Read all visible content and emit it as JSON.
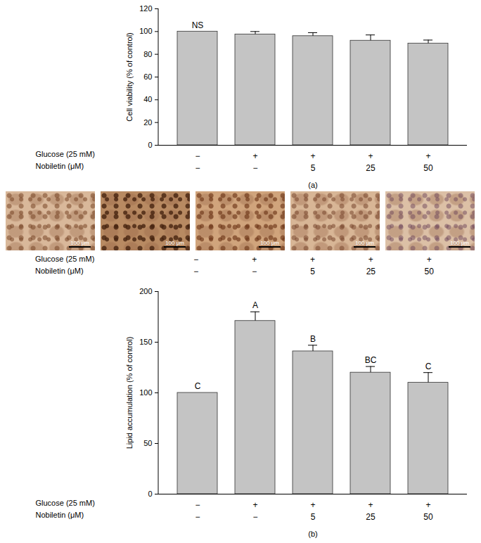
{
  "chart_data": [
    {
      "type": "bar",
      "title": "(a)",
      "y_label": "Cell viability (% of control)",
      "categories": [
        null,
        null,
        null,
        null,
        null
      ],
      "values": [
        100,
        97.5,
        96,
        92,
        89.5
      ],
      "errors": [
        0,
        2.5,
        3,
        5,
        3
      ],
      "annotations": [
        "NS",
        null,
        null,
        null,
        null
      ],
      "treatments": [
        {
          "label": "Glucose (25 mM)",
          "values": [
            "−",
            "+",
            "+",
            "+",
            "+"
          ]
        },
        {
          "label": "Nobiletin (μM)",
          "values": [
            "−",
            "−",
            "5",
            "25",
            "50"
          ]
        }
      ],
      "color": "#c4c4c4",
      "ylim": [
        0,
        120
      ],
      "yticks": [
        0,
        20,
        40,
        60,
        80,
        100,
        120
      ],
      "grid": false
    },
    {
      "type": "bar",
      "title": "(b)",
      "y_label": "Lipid accumulation (% of control)",
      "categories": [
        null,
        null,
        null,
        null,
        null
      ],
      "values": [
        100,
        171,
        141,
        120,
        110
      ],
      "errors": [
        0,
        9,
        6,
        6,
        10
      ],
      "annotations": [
        "C",
        "A",
        "B",
        "BC",
        "C"
      ],
      "treatments": [
        {
          "label": "Glucose (25 mM)",
          "values": [
            "−",
            "+",
            "+",
            "+",
            "+"
          ]
        },
        {
          "label": "Nobiletin (μM)",
          "values": [
            "−",
            "−",
            "5",
            "25",
            "50"
          ]
        }
      ],
      "color": "#c4c4c4",
      "ylim": [
        0,
        200
      ],
      "yticks": [
        0,
        50,
        100,
        150,
        200
      ],
      "grid": false
    }
  ],
  "image_panel": {
    "scale_bar": "100 μm",
    "treatments": [
      {
        "label": "Glucose (25 mM)",
        "values": [
          "−",
          "+",
          "+",
          "+",
          "+"
        ]
      },
      {
        "label": "Nobiletin (μM)",
        "values": [
          "−",
          "−",
          "5",
          "25",
          "50"
        ]
      }
    ]
  }
}
